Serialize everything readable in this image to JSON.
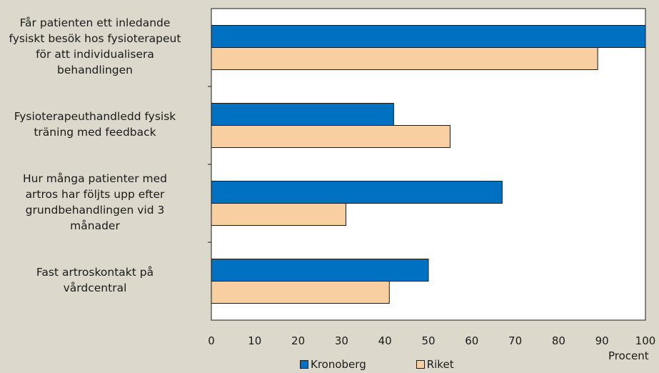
{
  "chart_data": {
    "type": "bar",
    "orientation": "horizontal",
    "categories": [
      "Får patienten ett inledande\nfysiskt besök hos fysioterapeut\nför att individualisera\nbehandlingen",
      "Fysioterapeuthandledd fysisk\nträning med feedback",
      "Hur många patienter med\nartros har följts upp efter\ngrundbehandlingen vid 3\nmånader",
      "Fast artroskontakt på\nvårdcentral"
    ],
    "series": [
      {
        "name": "Kronoberg",
        "values": [
          100,
          42,
          67,
          50
        ],
        "color": "#0070c0"
      },
      {
        "name": "Riket",
        "values": [
          89,
          55,
          31,
          41
        ],
        "color": "#f8cfa0"
      }
    ],
    "xlabel": "Procent",
    "xlim": [
      0,
      100
    ],
    "xticks": [
      "0",
      "10",
      "20",
      "30",
      "40",
      "50",
      "60",
      "70",
      "80",
      "90",
      "100"
    ],
    "grid": false,
    "legend_position": "bottom"
  }
}
